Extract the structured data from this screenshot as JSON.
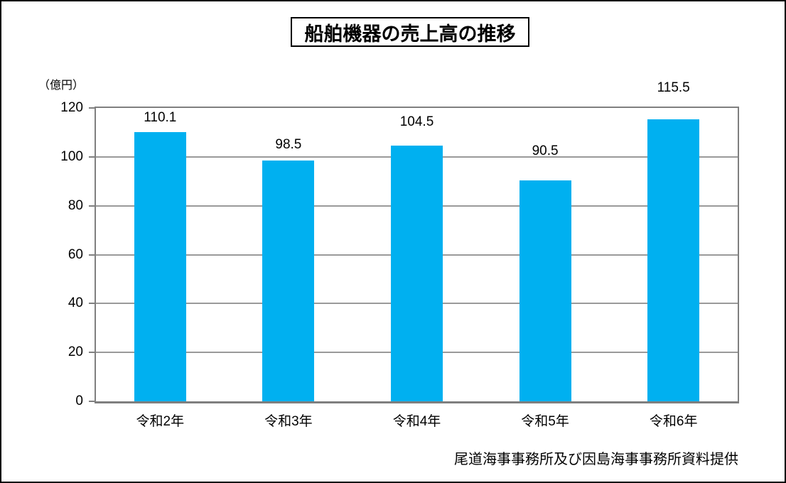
{
  "title": "船舶機器の売上高の推移",
  "unit_label": "（億円）",
  "source_note": "尾道海事事務所及び因島海事事務所資料提供",
  "chart_data": {
    "type": "bar",
    "title": "船舶機器の売上高の推移",
    "categories": [
      "令和2年",
      "令和3年",
      "令和4年",
      "令和5年",
      "令和6年"
    ],
    "values": [
      110.1,
      98.5,
      104.5,
      90.5,
      115.5
    ],
    "data_labels": [
      "110.1",
      "98.5",
      "104.5",
      "90.5",
      "115.5"
    ],
    "xlabel": "",
    "ylabel": "（億円）",
    "ylim": [
      0,
      120
    ],
    "yticks": [
      0,
      20,
      40,
      60,
      80,
      100,
      120
    ],
    "grid": "horizontal",
    "legend": "none",
    "bar_color": "#00b0f0",
    "gridline_color": "#9a9a9a",
    "plot_border_color": "#7f7f7f"
  }
}
